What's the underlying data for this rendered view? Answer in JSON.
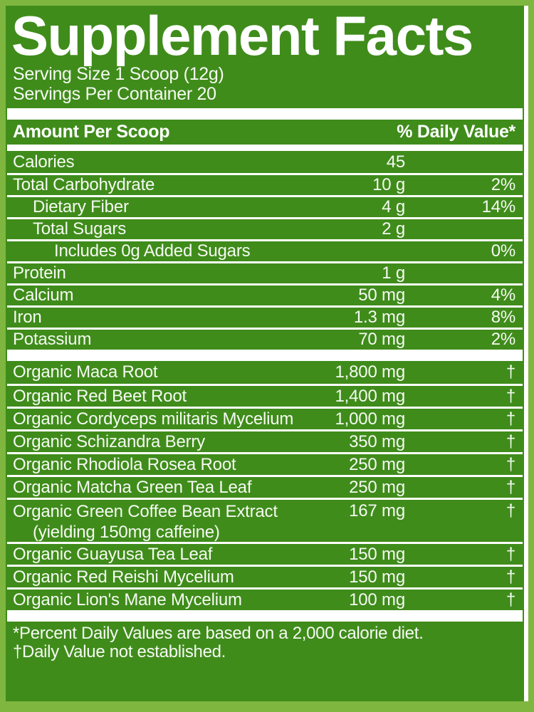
{
  "label": {
    "title": "Supplement Facts",
    "serving_size": "Serving Size 1 Scoop (12g)",
    "servings_per_container": "Servings Per Container 20",
    "header": {
      "left": "Amount Per Scoop",
      "right": "% Daily Value*"
    },
    "nutrients": [
      {
        "name": "Calories",
        "amount": "45",
        "dv": "",
        "indent": 0
      },
      {
        "name": "Total Carbohydrate",
        "amount": "10 g",
        "dv": "2%",
        "indent": 0
      },
      {
        "name": "Dietary Fiber",
        "amount": "4 g",
        "dv": "14%",
        "indent": 1
      },
      {
        "name": "Total Sugars",
        "amount": "2 g",
        "dv": "",
        "indent": 1
      },
      {
        "name": "Includes 0g Added Sugars",
        "amount": "",
        "dv": "0%",
        "indent": 2
      },
      {
        "name": "Protein",
        "amount": "1 g",
        "dv": "",
        "indent": 0
      },
      {
        "name": "Calcium",
        "amount": "50 mg",
        "dv": "4%",
        "indent": 0
      },
      {
        "name": "Iron",
        "amount": "1.3 mg",
        "dv": "8%",
        "indent": 0
      },
      {
        "name": "Potassium",
        "amount": "70 mg",
        "dv": "2%",
        "indent": 0
      }
    ],
    "ingredients": [
      {
        "name": "Organic Maca Root",
        "amount": "1,800 mg",
        "dv": "†"
      },
      {
        "name": "Organic Red Beet Root",
        "amount": "1,400 mg",
        "dv": "†"
      },
      {
        "name": "Organic Cordyceps militaris Mycelium",
        "amount": "1,000 mg",
        "dv": "†"
      },
      {
        "name": "Organic Schizandra Berry",
        "amount": "350 mg",
        "dv": "†"
      },
      {
        "name": "Organic Rhodiola Rosea Root",
        "amount": "250 mg",
        "dv": "†"
      },
      {
        "name": "Organic Matcha Green Tea Leaf",
        "amount": "250 mg",
        "dv": "†"
      },
      {
        "name": "Organic Green Coffee Bean Extract",
        "sub": "(yielding 150mg caffeine)",
        "amount": "167 mg",
        "dv": "†"
      },
      {
        "name": "Organic Guayusa Tea Leaf",
        "amount": "150 mg",
        "dv": "†"
      },
      {
        "name": "Organic Red Reishi Mycelium",
        "amount": "150 mg",
        "dv": "†"
      },
      {
        "name": "Organic Lion's Mane Mycelium",
        "amount": "100 mg",
        "dv": "†"
      }
    ],
    "footnotes": [
      "*Percent Daily Values are based on a 2,000 calorie diet.",
      "†Daily Value not established."
    ],
    "colors": {
      "background": "#7eb63f",
      "panel": "#3f8c1b",
      "text": "#ffffff"
    }
  }
}
